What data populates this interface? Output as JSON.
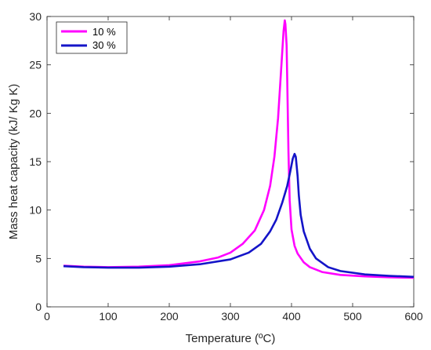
{
  "chart_data": {
    "type": "line",
    "xlabel": "Temperature (ºC)",
    "ylabel": "Mass heat capacity (kJ/ Kg K)",
    "xlim": [
      0,
      600
    ],
    "ylim": [
      0,
      30
    ],
    "xticks": [
      0,
      100,
      200,
      300,
      400,
      500,
      600
    ],
    "yticks": [
      0,
      5,
      10,
      15,
      20,
      25,
      30
    ],
    "grid": false,
    "legend_position": "top-left",
    "series": [
      {
        "name": "10 %",
        "color": "#ff00ff",
        "x": [
          27,
          60,
          100,
          150,
          200,
          250,
          280,
          300,
          320,
          340,
          355,
          365,
          372,
          378,
          382,
          385,
          387,
          389,
          390,
          392,
          393,
          395,
          397,
          400,
          405,
          410,
          420,
          430,
          450,
          480,
          520,
          560,
          600
        ],
        "y": [
          4.25,
          4.15,
          4.1,
          4.15,
          4.3,
          4.7,
          5.1,
          5.6,
          6.5,
          7.9,
          10.0,
          12.5,
          15.5,
          19.5,
          23.5,
          26.5,
          28.5,
          29.6,
          29.2,
          27.0,
          23.5,
          16.0,
          11.0,
          8.0,
          6.3,
          5.5,
          4.6,
          4.1,
          3.6,
          3.3,
          3.15,
          3.05,
          3.0
        ]
      },
      {
        "name": "30 %",
        "color": "#1414c8",
        "x": [
          27,
          60,
          100,
          150,
          200,
          250,
          300,
          330,
          350,
          365,
          375,
          385,
          393,
          398,
          402,
          405,
          407,
          410,
          412,
          415,
          420,
          430,
          440,
          460,
          480,
          520,
          560,
          600
        ],
        "y": [
          4.2,
          4.1,
          4.05,
          4.05,
          4.15,
          4.4,
          4.9,
          5.6,
          6.5,
          7.8,
          9.0,
          10.8,
          12.5,
          14.0,
          15.3,
          15.8,
          15.5,
          13.5,
          11.5,
          9.5,
          7.8,
          6.0,
          5.0,
          4.1,
          3.7,
          3.35,
          3.2,
          3.1
        ]
      }
    ]
  }
}
